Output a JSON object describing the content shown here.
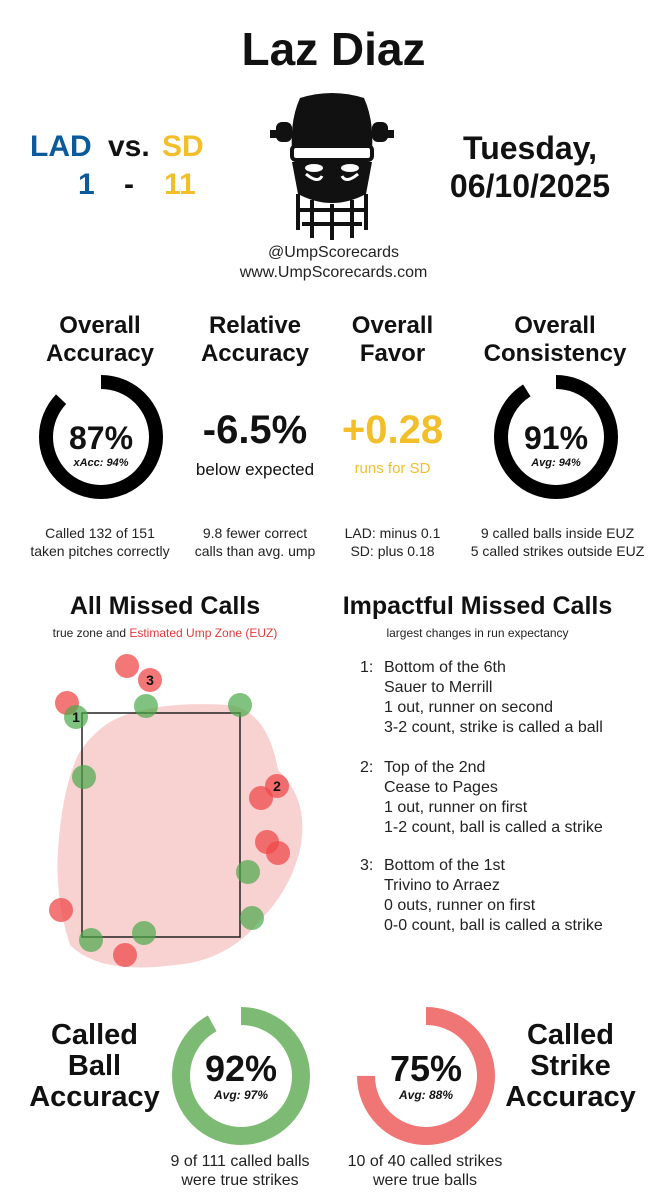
{
  "header": {
    "umpire": "Laz Diaz",
    "away_team": "LAD",
    "vs": "vs.",
    "home_team": "SD",
    "away_score": "1",
    "dash": "-",
    "home_score": "11",
    "day": "Tuesday,",
    "date": "06/10/2025",
    "handle": "@UmpScorecards",
    "website": "www.UmpScorecards.com"
  },
  "metrics": {
    "accuracy": {
      "title_line1": "Overall",
      "title_line2": "Accuracy",
      "value": "87%",
      "sub": "xAcc: 94%",
      "fraction": 0.87,
      "foot1": "Called 132 of 151",
      "foot2": "taken pitches correctly"
    },
    "relative": {
      "title_line1": "Relative",
      "title_line2": "Accuracy",
      "value": "-6.5%",
      "sub": "below expected",
      "foot1": "9.8 fewer correct",
      "foot2": "calls than avg. ump"
    },
    "favor": {
      "title_line1": "Overall",
      "title_line2": "Favor",
      "value": "+0.28",
      "sub": "runs for SD",
      "foot1": "LAD: minus 0.1",
      "foot2": "SD: plus 0.18"
    },
    "consistency": {
      "title_line1": "Overall",
      "title_line2": "Consistency",
      "value": "91%",
      "sub": "Avg: 94%",
      "fraction": 0.91,
      "foot1": "9 called balls inside EUZ",
      "foot2": "5 called strikes outside EUZ"
    }
  },
  "missed_calls": {
    "title": "All Missed Calls",
    "caption_prefix": "true zone and",
    "caption_euz": "Estimated Ump Zone (EUZ)",
    "labels": [
      "1",
      "2",
      "3"
    ]
  },
  "impactful": {
    "title": "Impactful Missed Calls",
    "caption": "largest changes in run expectancy",
    "items": [
      {
        "num": "1:",
        "line1": "Bottom of the 6th",
        "line2": "Sauer to Merrill",
        "line3": "1 out, runner on second",
        "line4": "3-2 count, strike is called a ball"
      },
      {
        "num": "2:",
        "line1": "Top of the 2nd",
        "line2": "Cease to Pages",
        "line3": "1 out, runner on first",
        "line4": "1-2 count, ball is called a strike"
      },
      {
        "num": "3:",
        "line1": "Bottom of the 1st",
        "line2": "Trivino to Arraez",
        "line3": "0 outs, runner on first",
        "line4": "0-0 count, ball is called a strike"
      }
    ]
  },
  "called_ball": {
    "label1": "Called",
    "label2": "Ball",
    "label3": "Accuracy",
    "value": "92%",
    "sub": "Avg: 97%",
    "fraction": 0.92,
    "foot1": "9 of 111 called balls",
    "foot2": "were true strikes"
  },
  "called_strike": {
    "label1": "Called",
    "label2": "Strike",
    "label3": "Accuracy",
    "value": "75%",
    "sub": "Avg: 88%",
    "fraction": 0.75,
    "foot1": "10 of 40 called strikes",
    "foot2": "were true balls"
  },
  "colors": {
    "lad": "#0b5a9a",
    "sd": "#f2bf2b",
    "ring_dark": "#000000",
    "ring_ball": "#7dbb74",
    "ring_strike": "#ef7674",
    "missed_red": "#ef4a4a",
    "missed_green": "#4aaa4a",
    "euz_fill": "#f6c6c6"
  }
}
